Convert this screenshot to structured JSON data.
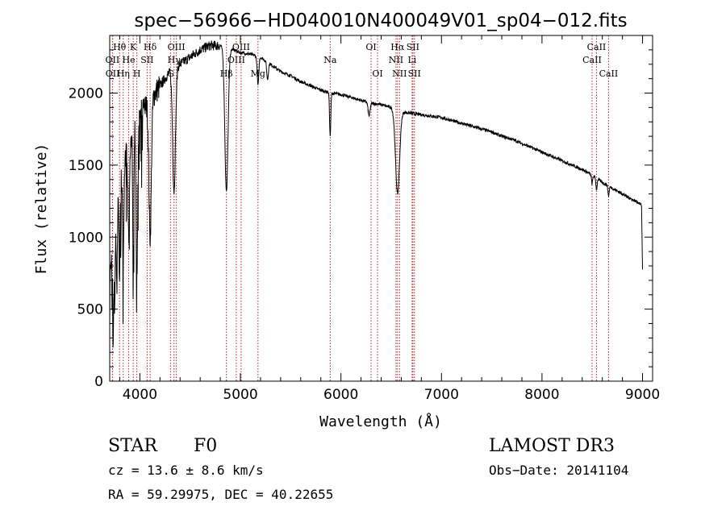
{
  "chart_data": {
    "type": "line",
    "title": "spec−56966−HD040010N400049V01_sp04−012.fits",
    "xlabel": "Wavelength (Å)",
    "ylabel": "Flux (relative)",
    "xlim": [
      3700,
      9100
    ],
    "ylim": [
      0,
      2400
    ],
    "xticks": [
      4000,
      5000,
      6000,
      7000,
      8000,
      9000
    ],
    "yticks": [
      0,
      500,
      1000,
      1500,
      2000
    ],
    "grid": false,
    "continuum": {
      "x": [
        3700,
        3730,
        3760,
        3800,
        3850,
        3900,
        3950,
        4000,
        4050,
        4100,
        4200,
        4300,
        4400,
        4500,
        4600,
        4700,
        4800,
        4900,
        5000,
        5100,
        5200,
        5300,
        5400,
        5500,
        5600,
        5700,
        5800,
        5900,
        6000,
        6100,
        6200,
        6300,
        6400,
        6500,
        6600,
        6700,
        6800,
        6900,
        7000,
        7100,
        7200,
        7300,
        7400,
        7500,
        7600,
        7700,
        7800,
        7900,
        8000,
        8100,
        8200,
        8300,
        8400,
        8500,
        8600,
        8700,
        8800,
        8900,
        8960,
        8990,
        9000
      ],
      "y": [
        700,
        950,
        1200,
        1400,
        1550,
        1680,
        1780,
        1850,
        1900,
        1950,
        2050,
        2150,
        2200,
        2250,
        2300,
        2330,
        2330,
        2310,
        2280,
        2270,
        2250,
        2200,
        2150,
        2120,
        2080,
        2050,
        2020,
        2000,
        1990,
        1970,
        1950,
        1930,
        1920,
        1900,
        1870,
        1860,
        1850,
        1840,
        1830,
        1810,
        1790,
        1770,
        1750,
        1730,
        1700,
        1680,
        1650,
        1620,
        1590,
        1560,
        1530,
        1500,
        1470,
        1430,
        1380,
        1340,
        1300,
        1260,
        1240,
        1220,
        780
      ]
    },
    "absorption_lines": [
      {
        "center": 3734,
        "depth": 700,
        "width": 5
      },
      {
        "center": 3750,
        "depth": 600,
        "width": 5
      },
      {
        "center": 3771,
        "depth": 580,
        "width": 6
      },
      {
        "center": 3798,
        "depth": 620,
        "width": 6
      },
      {
        "center": 3835,
        "depth": 700,
        "width": 7
      },
      {
        "center": 3889,
        "depth": 650,
        "width": 8
      },
      {
        "center": 3934,
        "depth": 1100,
        "width": 5
      },
      {
        "center": 3970,
        "depth": 1050,
        "width": 8
      },
      {
        "center": 4102,
        "depth": 950,
        "width": 12
      },
      {
        "center": 4340,
        "depth": 850,
        "width": 14
      },
      {
        "center": 4861,
        "depth": 1000,
        "width": 16
      },
      {
        "center": 5175,
        "depth": 200,
        "width": 8
      },
      {
        "center": 5270,
        "depth": 120,
        "width": 8
      },
      {
        "center": 5893,
        "depth": 300,
        "width": 6
      },
      {
        "center": 6280,
        "depth": 90,
        "width": 10
      },
      {
        "center": 6563,
        "depth": 580,
        "width": 20
      },
      {
        "center": 8498,
        "depth": 60,
        "width": 6
      },
      {
        "center": 8542,
        "depth": 80,
        "width": 6
      },
      {
        "center": 8662,
        "depth": 70,
        "width": 6
      }
    ],
    "line_markers": [
      {
        "label": "Hθ",
        "x": 3798,
        "row": 1
      },
      {
        "label": "OII",
        "x": 3727,
        "row": 2
      },
      {
        "label": "OII",
        "x": 3729,
        "row": 3
      },
      {
        "label": "He",
        "x": 3889,
        "row": 2
      },
      {
        "label": "Hη",
        "x": 3835,
        "row": 3
      },
      {
        "label": "K",
        "x": 3934,
        "row": 1
      },
      {
        "label": "H",
        "x": 3970,
        "row": 3
      },
      {
        "label": "SII",
        "x": 4072,
        "row": 2
      },
      {
        "label": "Hδ",
        "x": 4102,
        "row": 1
      },
      {
        "label": "OIII",
        "x": 4363,
        "row": 1
      },
      {
        "label": "Hγ",
        "x": 4340,
        "row": 2
      },
      {
        "label": "G",
        "x": 4305,
        "row": 3
      },
      {
        "label": "Hβ",
        "x": 4861,
        "row": 3
      },
      {
        "label": "OIII",
        "x": 4959,
        "row": 2
      },
      {
        "label": "OIII",
        "x": 5007,
        "row": 1
      },
      {
        "label": "Mg",
        "x": 5175,
        "row": 3
      },
      {
        "label": "Na",
        "x": 5893,
        "row": 2
      },
      {
        "label": "OI",
        "x": 6300,
        "row": 1
      },
      {
        "label": "OI",
        "x": 6364,
        "row": 3
      },
      {
        "label": "Hα",
        "x": 6563,
        "row": 1
      },
      {
        "label": "NII",
        "x": 6548,
        "row": 2
      },
      {
        "label": "NII",
        "x": 6583,
        "row": 3
      },
      {
        "label": "SII",
        "x": 6716,
        "row": 1
      },
      {
        "label": "Li",
        "x": 6708,
        "row": 2
      },
      {
        "label": "SII",
        "x": 6731,
        "row": 3
      },
      {
        "label": "CaII",
        "x": 8542,
        "row": 1
      },
      {
        "label": "CaII",
        "x": 8498,
        "row": 2
      },
      {
        "label": "CaII",
        "x": 8662,
        "row": 3
      }
    ]
  },
  "info": {
    "object_class": "STAR",
    "subclass": "F0",
    "survey": "LAMOST DR3",
    "redshift": "cz =  13.6 ±  8.6 km/s",
    "obs_date": "Obs−Date: 20141104",
    "coordinates": "RA =  59.29975, DEC =  40.22655"
  },
  "colors": {
    "spectrum": "#000000",
    "marker": "#b22222",
    "axes": "#000000"
  }
}
